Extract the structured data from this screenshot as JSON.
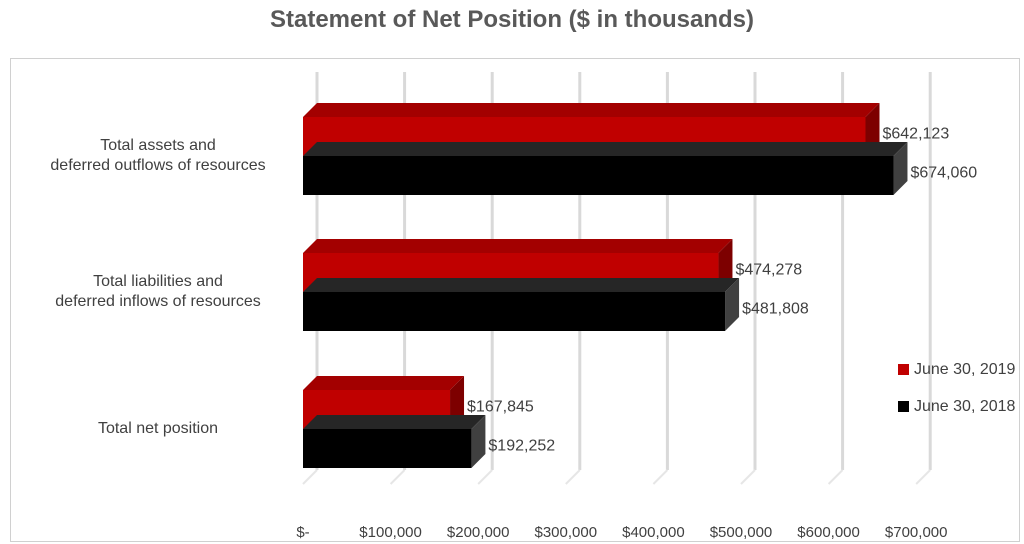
{
  "chart_data": {
    "type": "bar",
    "orientation": "horizontal",
    "title": "Statement of Net Position ($ in thousands)",
    "xlabel": "",
    "ylabel": "",
    "categories": [
      [
        "Total assets and",
        "deferred outflows of resources"
      ],
      [
        "Total liabilities and",
        "deferred inflows of resources"
      ],
      [
        "Total net position"
      ]
    ],
    "series": [
      {
        "name": "June 30, 2019",
        "color": "#c00000",
        "values": [
          642123,
          474278,
          167845
        ],
        "labels": [
          "$642,123",
          "$474,278",
          "$167,845"
        ]
      },
      {
        "name": "June 30, 2018",
        "color": "#000000",
        "values": [
          674060,
          481808,
          192252
        ],
        "labels": [
          "$674,060",
          "$481,808",
          "$192,252"
        ]
      }
    ],
    "xlim": [
      0,
      700000
    ],
    "xticks": [
      0,
      100000,
      200000,
      300000,
      400000,
      500000,
      600000,
      700000
    ],
    "xtick_labels": [
      "$-",
      "$100,000",
      "$200,000",
      "$300,000",
      "$400,000",
      "$500,000",
      "$600,000",
      "$700,000"
    ],
    "grid": true,
    "legend_position": "right",
    "style": "3d"
  }
}
